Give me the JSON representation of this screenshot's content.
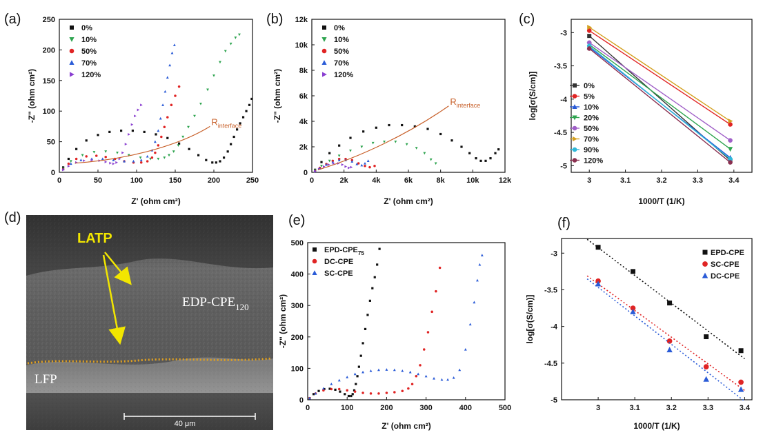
{
  "panels": {
    "a": "(a)",
    "b": "(b)",
    "c": "(c)",
    "d": "(d)",
    "e": "(e)",
    "f": "(f)"
  },
  "colors": {
    "black": "#111111",
    "green": "#2ea44f",
    "red": "#e02424",
    "blue": "#2a5bd7",
    "purple": "#8a3fd1",
    "orange": "#c8602a",
    "yellow": "#f2e600",
    "dot_orange": "#e0a020"
  },
  "sem": {
    "labels": {
      "latp": "LATP",
      "edp_main": "EDP-CPE",
      "edp_sub": "120",
      "lfp": "LFP",
      "scale": "40 μm"
    }
  },
  "chart_data": [
    {
      "id": "a",
      "type": "scatter",
      "xlabel": "Z' (ohm cm²)",
      "ylabel": "-Z\" (ohm cm²)",
      "xlim": [
        0,
        250
      ],
      "ylim": [
        0,
        250
      ],
      "xticks": [
        0,
        50,
        100,
        150,
        200,
        250
      ],
      "yticks": [
        0,
        50,
        100,
        150,
        200,
        250
      ],
      "annotation": {
        "main": "R",
        "sub": "interface",
        "x": 195,
        "y": 75
      },
      "series": [
        {
          "name": "0%",
          "marker": "square",
          "color": "#111111",
          "x": [
            5,
            12,
            22,
            35,
            50,
            65,
            80,
            95,
            110,
            125,
            140,
            155,
            168,
            180,
            190,
            198,
            203,
            208,
            213,
            218,
            222,
            226,
            230,
            234,
            238,
            242,
            246,
            249
          ],
          "y": [
            8,
            22,
            38,
            52,
            61,
            66,
            68,
            68,
            66,
            62,
            56,
            47,
            38,
            28,
            20,
            16,
            16,
            18,
            24,
            34,
            46,
            58,
            70,
            80,
            90,
            100,
            110,
            120
          ]
        },
        {
          "name": "10%",
          "marker": "triangle-down",
          "color": "#2ea44f",
          "x": [
            5,
            15,
            30,
            45,
            60,
            75,
            90,
            105,
            118,
            128,
            136,
            142,
            148,
            154,
            160,
            167,
            175,
            183,
            192,
            200,
            208,
            215,
            222,
            228,
            233
          ],
          "y": [
            6,
            18,
            28,
            33,
            34,
            32,
            28,
            24,
            22,
            22,
            24,
            28,
            34,
            44,
            58,
            74,
            92,
            112,
            135,
            158,
            180,
            198,
            210,
            220,
            225
          ]
        },
        {
          "name": "50%",
          "marker": "circle",
          "color": "#e02424",
          "x": [
            5,
            12,
            22,
            35,
            48,
            60,
            72,
            84,
            96,
            106,
            114,
            120,
            124,
            128,
            132,
            136,
            140,
            145,
            150,
            155
          ],
          "y": [
            5,
            14,
            22,
            26,
            27,
            25,
            22,
            18,
            16,
            16,
            18,
            24,
            32,
            44,
            58,
            74,
            90,
            110,
            125,
            140
          ]
        },
        {
          "name": "70%",
          "marker": "triangle-up",
          "color": "#2a5bd7",
          "x": [
            5,
            15,
            28,
            42,
            56,
            70,
            84,
            96,
            106,
            114,
            120,
            124,
            128,
            131,
            134,
            137,
            140,
            143,
            146,
            149
          ],
          "y": [
            5,
            14,
            20,
            22,
            22,
            20,
            18,
            18,
            20,
            26,
            36,
            50,
            68,
            88,
            110,
            132,
            155,
            175,
            195,
            208
          ]
        },
        {
          "name": "120%",
          "marker": "triangle-right",
          "color": "#8a3fd1",
          "x": [
            5,
            12,
            22,
            32,
            42,
            52,
            60,
            66,
            70,
            74,
            78,
            82,
            86,
            90,
            94,
            98,
            102,
            106
          ],
          "y": [
            4,
            10,
            16,
            19,
            20,
            19,
            17,
            15,
            14,
            16,
            22,
            32,
            46,
            62,
            78,
            92,
            102,
            110
          ]
        }
      ]
    },
    {
      "id": "b",
      "type": "scatter",
      "xlabel": "Z' (ohm cm²)",
      "ylabel": "-Z\" (ohm cm²)",
      "xlim": [
        0,
        12000
      ],
      "ylim": [
        0,
        12000
      ],
      "xticks": [
        0,
        2000,
        4000,
        6000,
        8000,
        10000,
        12000
      ],
      "xtick_labels": [
        "0",
        "2k",
        "4k",
        "6k",
        "8k",
        "10k",
        "12k"
      ],
      "yticks": [
        0,
        2000,
        4000,
        6000,
        8000,
        10000,
        12000
      ],
      "ytick_labels": [
        "0",
        "2k",
        "4k",
        "6k",
        "8k",
        "10k",
        "12k"
      ],
      "annotation": {
        "main": "R",
        "sub": "interface",
        "x": 8500,
        "y": 5200
      },
      "series": [
        {
          "name": "0%",
          "marker": "square",
          "color": "#111111",
          "x": [
            200,
            600,
            1100,
            1700,
            2400,
            3200,
            4000,
            4800,
            5600,
            6400,
            7200,
            8000,
            8700,
            9300,
            9800,
            10200,
            10500,
            10800,
            11100,
            11400,
            11600
          ],
          "y": [
            200,
            800,
            1500,
            2100,
            2700,
            3200,
            3500,
            3700,
            3700,
            3600,
            3400,
            3000,
            2500,
            2000,
            1500,
            1100,
            900,
            900,
            1100,
            1500,
            1800
          ]
        },
        {
          "name": "10%",
          "marker": "triangle-down",
          "color": "#2ea44f",
          "x": [
            200,
            600,
            1100,
            1700,
            2400,
            3100,
            3800,
            4500,
            5200,
            5900,
            6500,
            7000,
            7400,
            7700
          ],
          "y": [
            150,
            500,
            900,
            1300,
            1700,
            2000,
            2300,
            2400,
            2400,
            2200,
            1900,
            1500,
            1000,
            700
          ]
        },
        {
          "name": "50%",
          "marker": "circle",
          "color": "#e02424",
          "x": [
            200,
            500,
            900,
            1300,
            1700,
            2100,
            2500,
            2900,
            3300,
            3600,
            3900
          ],
          "y": [
            100,
            350,
            650,
            900,
            1050,
            1050,
            950,
            700,
            500,
            400,
            500
          ]
        },
        {
          "name": "70%",
          "marker": "triangle-up",
          "color": "#2a5bd7",
          "x": [
            200,
            500,
            900,
            1300,
            1700,
            2100,
            2500,
            2800,
            3100,
            3300,
            3500
          ],
          "y": [
            100,
            300,
            600,
            800,
            950,
            950,
            850,
            650,
            550,
            700,
            900
          ]
        },
        {
          "name": "120%",
          "marker": "triangle-right",
          "color": "#8a3fd1",
          "x": [
            200,
            450,
            750,
            1050,
            1350,
            1650,
            1900,
            2100,
            2300,
            2450
          ],
          "y": [
            80,
            250,
            450,
            600,
            700,
            700,
            600,
            450,
            350,
            400
          ]
        }
      ]
    },
    {
      "id": "c",
      "type": "line",
      "xlabel": "1000/T (1/K)",
      "ylabel": "log[σ(S/cm)]",
      "xlim": [
        2.95,
        3.45
      ],
      "ylim": [
        -5.1,
        -2.8
      ],
      "xticks": [
        3.0,
        3.1,
        3.2,
        3.3,
        3.4
      ],
      "yticks": [
        -3.0,
        -3.5,
        -4.0,
        -4.5,
        -5.0
      ],
      "x": [
        3.0,
        3.39
      ],
      "series": [
        {
          "name": "0%",
          "marker": "square",
          "color": "#333333",
          "values": [
            -3.05,
            -4.92
          ]
        },
        {
          "name": "5%",
          "marker": "circle",
          "color": "#e02424",
          "values": [
            -2.97,
            -4.38
          ]
        },
        {
          "name": "10%",
          "marker": "triangle-up",
          "color": "#2a5bd7",
          "values": [
            -3.22,
            -4.88
          ]
        },
        {
          "name": "20%",
          "marker": "triangle-down",
          "color": "#2ea44f",
          "values": [
            -3.18,
            -4.75
          ]
        },
        {
          "name": "50%",
          "marker": "circle",
          "color": "#a060c8",
          "values": [
            -3.15,
            -4.62
          ]
        },
        {
          "name": "70%",
          "marker": "triangle-right",
          "color": "#d4a020",
          "values": [
            -2.92,
            -4.33
          ]
        },
        {
          "name": "90%",
          "marker": "circle",
          "color": "#30b8d8",
          "values": [
            -3.2,
            -4.9
          ]
        },
        {
          "name": "120%",
          "marker": "circle",
          "color": "#8a3050",
          "values": [
            -3.24,
            -4.95
          ]
        }
      ]
    },
    {
      "id": "e",
      "type": "scatter",
      "xlabel": "Z' (ohm cm²)",
      "ylabel": "-Z\" (ohm cm²)",
      "xlim": [
        0,
        500
      ],
      "ylim": [
        0,
        500
      ],
      "xticks": [
        0,
        100,
        200,
        300,
        400,
        500
      ],
      "yticks": [
        0,
        100,
        200,
        300,
        400,
        500
      ],
      "series": [
        {
          "name": "EPD-CPE",
          "name_sub": "75",
          "marker": "square",
          "color": "#111111",
          "x": [
            5,
            15,
            28,
            42,
            56,
            70,
            82,
            94,
            104,
            110,
            114,
            118,
            122,
            126,
            130,
            135,
            140,
            146,
            152,
            158,
            164,
            170,
            176,
            182
          ],
          "y": [
            5,
            18,
            28,
            34,
            35,
            32,
            26,
            18,
            12,
            12,
            18,
            30,
            50,
            75,
            105,
            140,
            180,
            225,
            270,
            315,
            355,
            390,
            430,
            480
          ]
        },
        {
          "name": "DC-CPE",
          "marker": "circle",
          "color": "#e02424",
          "x": [
            5,
            20,
            40,
            60,
            80,
            100,
            120,
            140,
            160,
            180,
            200,
            220,
            240,
            255,
            265,
            275,
            285,
            295,
            305,
            315,
            325,
            335
          ],
          "y": [
            5,
            20,
            30,
            34,
            34,
            30,
            26,
            22,
            20,
            20,
            22,
            24,
            28,
            36,
            50,
            75,
            110,
            160,
            215,
            280,
            345,
            420
          ]
        },
        {
          "name": "SC-CPE",
          "marker": "triangle-up",
          "color": "#2a5bd7",
          "x": [
            5,
            20,
            40,
            60,
            80,
            100,
            120,
            140,
            160,
            180,
            200,
            220,
            240,
            260,
            280,
            300,
            320,
            340,
            355,
            370,
            385,
            400,
            412,
            422,
            430,
            436,
            442
          ],
          "y": [
            5,
            20,
            36,
            50,
            62,
            72,
            82,
            88,
            92,
            95,
            96,
            95,
            92,
            88,
            82,
            75,
            68,
            64,
            64,
            70,
            95,
            160,
            240,
            310,
            380,
            430,
            460
          ]
        }
      ]
    },
    {
      "id": "f",
      "type": "scatter",
      "xlabel": "1000/T (1/K)",
      "ylabel": "log[σ(S/cm)]",
      "xlim": [
        2.9,
        3.42
      ],
      "ylim": [
        -5.0,
        -2.8
      ],
      "xticks": [
        3.0,
        3.1,
        3.2,
        3.3,
        3.4
      ],
      "yticks": [
        -3.0,
        -3.5,
        -4.0,
        -4.5,
        -5.0
      ],
      "series": [
        {
          "name": "EPD-CPE",
          "marker": "square",
          "color": "#111111",
          "x": [
            3.0,
            3.095,
            3.195,
            3.295,
            3.39
          ],
          "values": [
            -2.92,
            -3.25,
            -3.68,
            -4.14,
            -4.33
          ]
        },
        {
          "name": "SC-CPE",
          "marker": "circle",
          "color": "#e02424",
          "x": [
            3.0,
            3.095,
            3.195,
            3.295,
            3.39
          ],
          "values": [
            -3.38,
            -3.75,
            -4.2,
            -4.55,
            -4.76
          ]
        },
        {
          "name": "DC-CPE",
          "marker": "triangle-up",
          "color": "#2a5bd7",
          "x": [
            3.0,
            3.095,
            3.195,
            3.295,
            3.39
          ],
          "values": [
            -3.42,
            -3.8,
            -4.32,
            -4.72,
            -4.86
          ]
        }
      ]
    }
  ]
}
